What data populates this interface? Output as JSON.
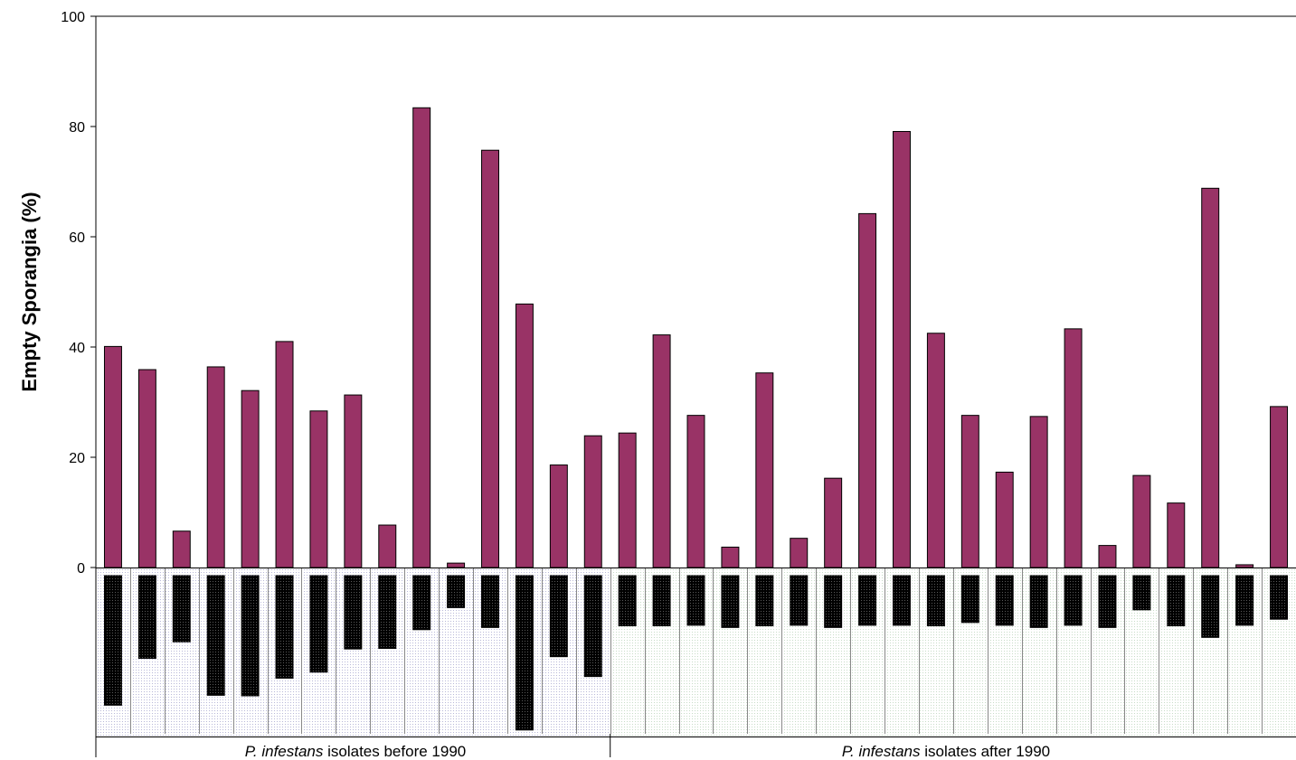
{
  "chart_data": {
    "type": "bar",
    "ylabel": "Empty Sporangia (%)",
    "xlabel": "",
    "ylim": [
      0,
      100
    ],
    "yticks": [
      "0",
      "20",
      "40",
      "60",
      "80",
      "100"
    ],
    "grid": false,
    "legend": "none",
    "series": [
      {
        "color": "#993366",
        "values": [
          40.1,
          35.9,
          6.6,
          36.4,
          32.1,
          41.0,
          28.4,
          31.3,
          7.7,
          83.4,
          0.8,
          75.7,
          47.8,
          18.6,
          23.9,
          24.4,
          42.2,
          27.6,
          3.7,
          35.3,
          5.3,
          16.2,
          64.2,
          79.1,
          42.5,
          27.6,
          17.3,
          27.4,
          43.3,
          4.0,
          16.7,
          11.7,
          68.8,
          0.5,
          29.2
        ]
      },
      {
        "color": "#000000",
        "pattern": "dotted-black",
        "values": [
          23.5,
          15.0,
          12.0,
          21.7,
          21.8,
          18.6,
          17.5,
          13.3,
          13.2,
          9.8,
          5.8,
          9.4,
          28.0,
          14.7,
          18.3,
          9.1,
          9.1,
          9.0,
          9.4,
          9.1,
          9.0,
          9.4,
          9.0,
          9.0,
          9.1,
          8.5,
          9.0,
          9.4,
          9.0,
          9.4,
          6.2,
          9.1,
          11.2,
          9.0,
          7.9
        ]
      }
    ],
    "groups": [
      {
        "label_italic": "P. infestans",
        "label_rest": " isolates before 1990",
        "count": 15
      },
      {
        "label_italic": "P. infestans",
        "label_rest": " isolates after 1990",
        "count": 20
      }
    ]
  }
}
